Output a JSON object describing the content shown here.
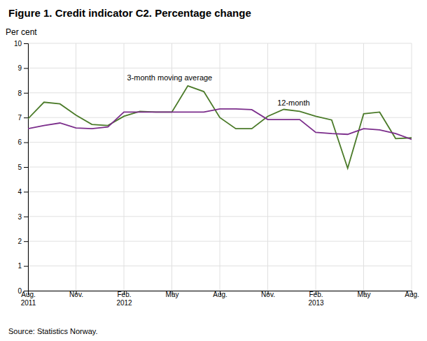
{
  "chart_data": {
    "type": "line",
    "title": "Figure 1. Credit indicator C2. Percentage change",
    "ylabel": "Per cent",
    "source": "Source: Statistics Norway.",
    "categories": [
      "Aug.\n2011",
      null,
      null,
      "Nov.",
      null,
      null,
      "Feb.\n2012",
      null,
      null,
      "May",
      null,
      null,
      "Aug.",
      null,
      null,
      "Nov.",
      null,
      null,
      "Feb.\n2013",
      null,
      null,
      "May",
      null,
      null,
      "Aug."
    ],
    "series": [
      {
        "color": "#4a7a28",
        "values": [
          6.95,
          7.62,
          7.55,
          7.1,
          6.72,
          6.68,
          7.05,
          7.25,
          7.22,
          7.22,
          8.28,
          8.05,
          7.0,
          6.55,
          6.55,
          7.05,
          7.33,
          7.25,
          7.05,
          6.9,
          4.95,
          7.15,
          7.22,
          6.15,
          6.18
        ]
      },
      {
        "color": "#7b2d8b",
        "values": [
          6.55,
          6.68,
          6.78,
          6.58,
          6.55,
          6.62,
          7.22,
          7.22,
          7.22,
          7.22,
          7.22,
          7.22,
          7.35,
          7.35,
          7.32,
          6.92,
          6.92,
          6.92,
          6.4,
          6.35,
          6.32,
          6.55,
          6.5,
          6.35,
          6.12
        ]
      }
    ],
    "annotations": [
      {
        "text": "3-month moving average",
        "x": 6.2,
        "y": 8.45
      },
      {
        "text": "12-month",
        "x": 15.6,
        "y": 7.42
      }
    ],
    "ylim": [
      0,
      10
    ],
    "yticks": [
      0,
      1,
      2,
      3,
      4,
      5,
      6,
      7,
      8,
      9,
      10
    ],
    "grid": true
  }
}
